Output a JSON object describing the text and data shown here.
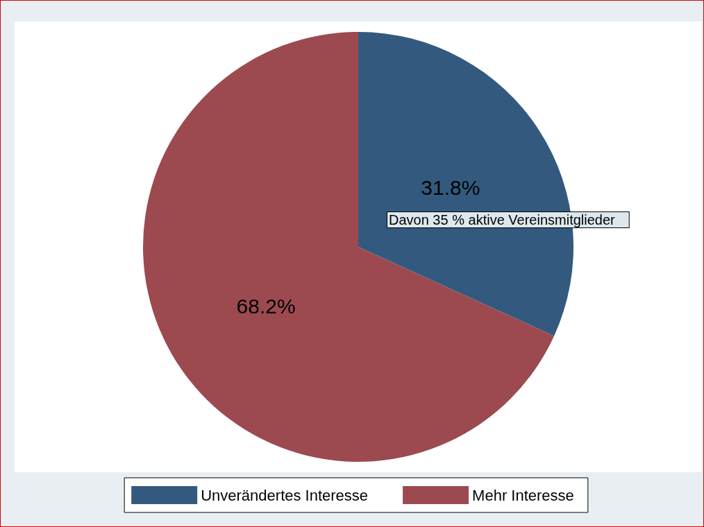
{
  "chart_data": {
    "type": "pie",
    "categories": [
      "Unverändertes Interesse",
      "Mehr Interesse"
    ],
    "values": [
      31.8,
      68.2
    ],
    "colors": [
      "#335a7e",
      "#9c4a50"
    ],
    "value_labels": [
      "31.8%",
      "68.2%"
    ],
    "annotations": [
      "Davon 35 % aktive Vereinsmitglieder"
    ],
    "legend": "bottom"
  }
}
